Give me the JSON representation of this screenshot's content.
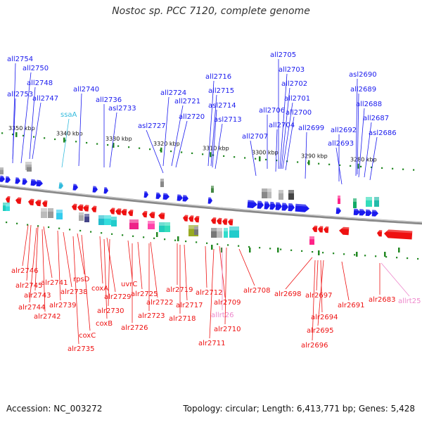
{
  "title": "Nostoc sp. PCC 7120, complete genome",
  "footer": {
    "accession": "Accession: NC_003272",
    "topology": "Topology: circular; Length: 6,413,771 bp; Genes: 5,428"
  },
  "colors": {
    "forward_strand": "#1a1aee",
    "reverse_strand": "#ee1111",
    "rna_gene": "#ee88cc",
    "rna_gene_alt": "#33bbdd",
    "backbone": "#888888",
    "tick": "#228822"
  },
  "scale_ticks": [
    "3350 kbp",
    "3340 kbp",
    "3330 kbp",
    "3320 kbp",
    "3310 kbp",
    "3300 kbp",
    "3290 kbp",
    "3280 kbp"
  ],
  "top_labels": [
    {
      "name": "all2754",
      "color": "#1a1aee"
    },
    {
      "name": "all2750",
      "color": "#1a1aee"
    },
    {
      "name": "all2748",
      "color": "#1a1aee"
    },
    {
      "name": "all2753",
      "color": "#1a1aee"
    },
    {
      "name": "all2747",
      "color": "#1a1aee"
    },
    {
      "name": "all2740",
      "color": "#1a1aee"
    },
    {
      "name": "ssaA",
      "color": "#33bbdd"
    },
    {
      "name": "all2736",
      "color": "#1a1aee"
    },
    {
      "name": "asl2733",
      "color": "#1a1aee"
    },
    {
      "name": "all2724",
      "color": "#1a1aee"
    },
    {
      "name": "all2721",
      "color": "#1a1aee"
    },
    {
      "name": "asl2727",
      "color": "#1a1aee"
    },
    {
      "name": "all2720",
      "color": "#1a1aee"
    },
    {
      "name": "all2716",
      "color": "#1a1aee"
    },
    {
      "name": "all2715",
      "color": "#1a1aee"
    },
    {
      "name": "asl2714",
      "color": "#1a1aee"
    },
    {
      "name": "asl2713",
      "color": "#1a1aee"
    },
    {
      "name": "all2705",
      "color": "#1a1aee"
    },
    {
      "name": "all2703",
      "color": "#1a1aee"
    },
    {
      "name": "all2702",
      "color": "#1a1aee"
    },
    {
      "name": "all2701",
      "color": "#1a1aee"
    },
    {
      "name": "all2706",
      "color": "#1a1aee"
    },
    {
      "name": "all2700",
      "color": "#1a1aee"
    },
    {
      "name": "all2704",
      "color": "#1a1aee"
    },
    {
      "name": "all2707",
      "color": "#1a1aee"
    },
    {
      "name": "all2699",
      "color": "#1a1aee"
    },
    {
      "name": "asl2690",
      "color": "#1a1aee"
    },
    {
      "name": "all2689",
      "color": "#1a1aee"
    },
    {
      "name": "all2688",
      "color": "#1a1aee"
    },
    {
      "name": "all2687",
      "color": "#1a1aee"
    },
    {
      "name": "all2692",
      "color": "#1a1aee"
    },
    {
      "name": "asl2686",
      "color": "#1a1aee"
    },
    {
      "name": "all2693",
      "color": "#1a1aee"
    }
  ],
  "bottom_labels": [
    {
      "name": "alr2746",
      "color": "#ee1111"
    },
    {
      "name": "alr2745",
      "color": "#ee1111"
    },
    {
      "name": "alr2741",
      "color": "#ee1111"
    },
    {
      "name": "alr2743",
      "color": "#ee1111"
    },
    {
      "name": "alr2744",
      "color": "#ee1111"
    },
    {
      "name": "alr2742",
      "color": "#ee1111"
    },
    {
      "name": "alr2739",
      "color": "#ee1111"
    },
    {
      "name": "alr2738",
      "color": "#ee1111"
    },
    {
      "name": "rpsD",
      "color": "#ee1111"
    },
    {
      "name": "coxC",
      "color": "#ee1111"
    },
    {
      "name": "alr2735",
      "color": "#ee1111"
    },
    {
      "name": "coxA",
      "color": "#ee1111"
    },
    {
      "name": "alr2729",
      "color": "#ee1111"
    },
    {
      "name": "alr2730",
      "color": "#ee1111"
    },
    {
      "name": "coxB",
      "color": "#ee1111"
    },
    {
      "name": "uvrC",
      "color": "#ee1111"
    },
    {
      "name": "alr2725",
      "color": "#ee1111"
    },
    {
      "name": "alr2722",
      "color": "#ee1111"
    },
    {
      "name": "alr2723",
      "color": "#ee1111"
    },
    {
      "name": "alr2726",
      "color": "#ee1111"
    },
    {
      "name": "alr2719",
      "color": "#ee1111"
    },
    {
      "name": "alr2717",
      "color": "#ee1111"
    },
    {
      "name": "alr2718",
      "color": "#ee1111"
    },
    {
      "name": "alr2712",
      "color": "#ee1111"
    },
    {
      "name": "alr2709",
      "color": "#ee1111"
    },
    {
      "name": "allrt26",
      "color": "#ee88cc"
    },
    {
      "name": "alr2710",
      "color": "#ee1111"
    },
    {
      "name": "alr2711",
      "color": "#ee1111"
    },
    {
      "name": "alr2708",
      "color": "#ee1111"
    },
    {
      "name": "alr2698",
      "color": "#ee1111"
    },
    {
      "name": "alr2697",
      "color": "#ee1111"
    },
    {
      "name": "alr2694",
      "color": "#ee1111"
    },
    {
      "name": "alr2695",
      "color": "#ee1111"
    },
    {
      "name": "alr2696",
      "color": "#ee1111"
    },
    {
      "name": "alr2691",
      "color": "#ee1111"
    },
    {
      "name": "alr2683",
      "color": "#ee1111"
    },
    {
      "name": "allrt25",
      "color": "#ee88cc"
    }
  ]
}
